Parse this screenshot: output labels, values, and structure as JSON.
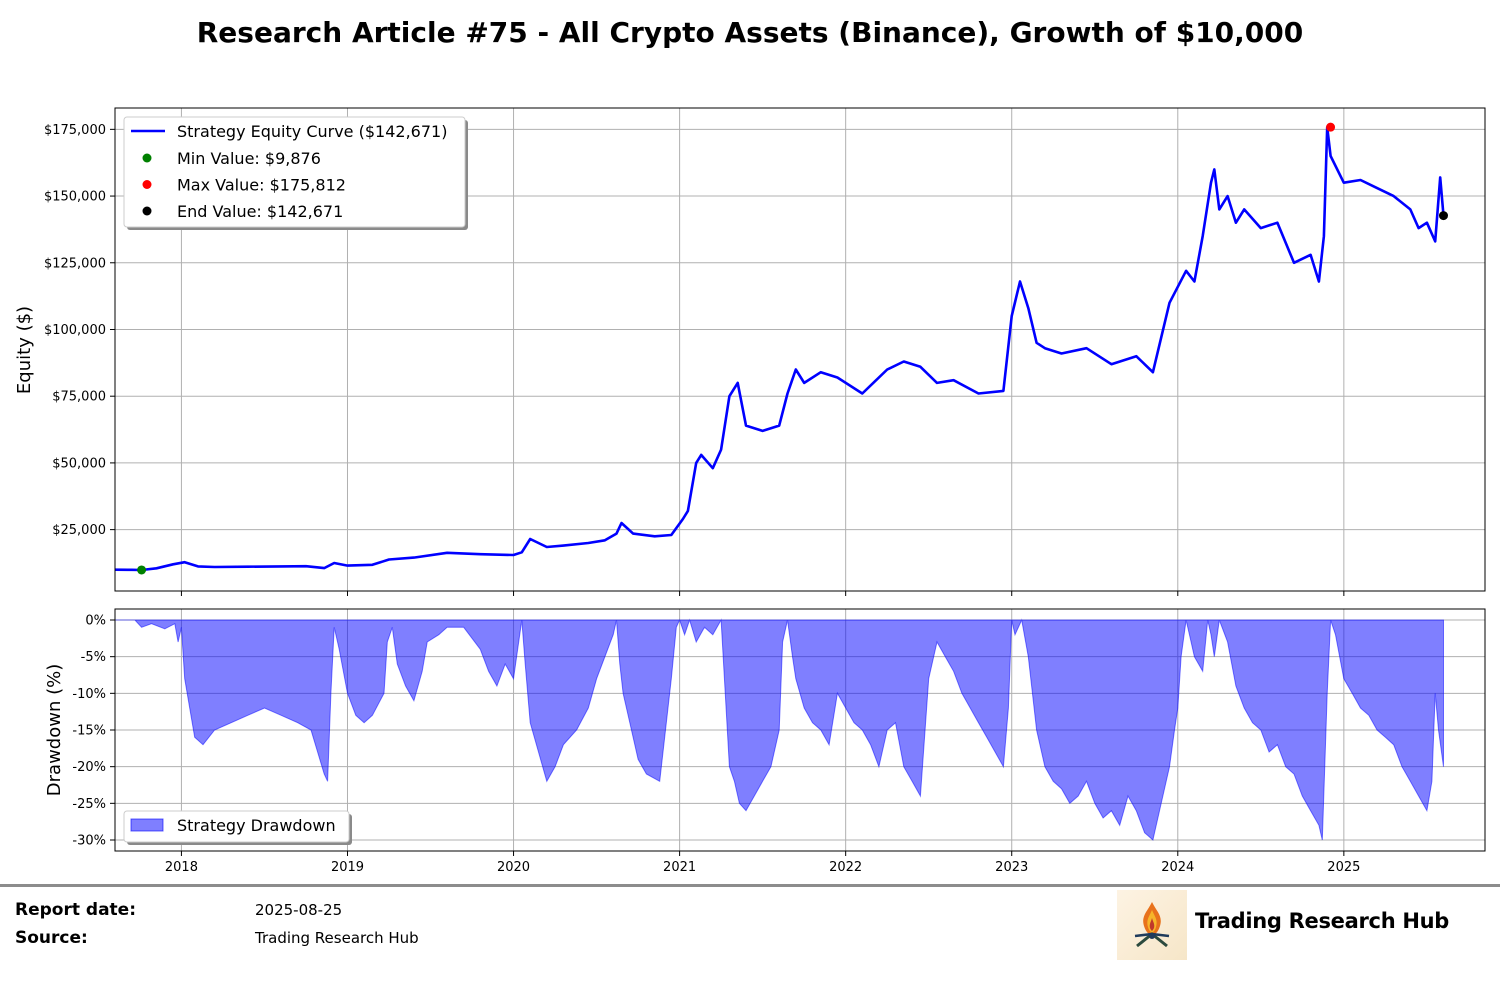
{
  "chart_data": [
    {
      "type": "line",
      "title": "Research Article #75 - All Crypto Assets (Binance), Growth of $10,000",
      "xlabel": "",
      "ylabel": "Equity ($)",
      "xlim": [
        2017.6,
        2025.85
      ],
      "ylim": [
        2000,
        183000
      ],
      "yticks": [
        25000,
        50000,
        75000,
        100000,
        125000,
        150000,
        175000
      ],
      "ytick_labels": [
        "$25,000",
        "$50,000",
        "$75,000",
        "$100,000",
        "$125,000",
        "$150,000",
        "$175,000"
      ],
      "xticks": [
        2018,
        2019,
        2020,
        2021,
        2022,
        2023,
        2024,
        2025
      ],
      "xtick_labels": [
        "2018",
        "2019",
        "2020",
        "2021",
        "2022",
        "2023",
        "2024",
        "2025"
      ],
      "grid": true,
      "legend_position": "top-left",
      "series": [
        {
          "name": "Strategy Equity Curve ($142,671)",
          "color": "#0000ff",
          "x": [
            2017.6,
            2017.7,
            2017.76,
            2017.85,
            2017.95,
            2018.02,
            2018.1,
            2018.2,
            2018.4,
            2018.6,
            2018.75,
            2018.86,
            2018.92,
            2019.0,
            2019.15,
            2019.25,
            2019.4,
            2019.6,
            2019.8,
            2020.0,
            2020.05,
            2020.1,
            2020.2,
            2020.3,
            2020.45,
            2020.55,
            2020.62,
            2020.65,
            2020.72,
            2020.85,
            2020.95,
            2021.02,
            2021.05,
            2021.1,
            2021.13,
            2021.2,
            2021.25,
            2021.3,
            2021.35,
            2021.4,
            2021.5,
            2021.6,
            2021.65,
            2021.7,
            2021.75,
            2021.85,
            2021.95,
            2022.1,
            2022.25,
            2022.35,
            2022.45,
            2022.55,
            2022.65,
            2022.8,
            2022.95,
            2023.0,
            2023.05,
            2023.1,
            2023.15,
            2023.2,
            2023.3,
            2023.45,
            2023.6,
            2023.75,
            2023.85,
            2023.95,
            2024.05,
            2024.1,
            2024.15,
            2024.2,
            2024.22,
            2024.25,
            2024.3,
            2024.35,
            2024.4,
            2024.5,
            2024.6,
            2024.7,
            2024.8,
            2024.85,
            2024.88,
            2024.9,
            2024.92,
            2025.0,
            2025.1,
            2025.2,
            2025.3,
            2025.4,
            2025.45,
            2025.5,
            2025.55,
            2025.58,
            2025.6
          ],
          "y": [
            10000,
            9950,
            9876,
            10500,
            12000,
            12800,
            11200,
            11000,
            11100,
            11200,
            11300,
            10600,
            12500,
            11500,
            11800,
            13800,
            14500,
            16300,
            15800,
            15500,
            16500,
            21500,
            18500,
            19000,
            20000,
            21000,
            23500,
            27500,
            23500,
            22500,
            23000,
            29000,
            32000,
            50000,
            53000,
            48000,
            55000,
            75000,
            80000,
            64000,
            62000,
            64000,
            76000,
            85000,
            80000,
            84000,
            82000,
            76000,
            85000,
            88000,
            86000,
            80000,
            81000,
            76000,
            77000,
            105000,
            118000,
            108000,
            95000,
            93000,
            91000,
            93000,
            87000,
            90000,
            84000,
            110000,
            122000,
            118000,
            135000,
            155000,
            160000,
            145000,
            150000,
            140000,
            145000,
            138000,
            140000,
            125000,
            128000,
            118000,
            135000,
            175812,
            165000,
            155000,
            156000,
            153000,
            150000,
            145000,
            138000,
            140000,
            133000,
            157000,
            142671
          ]
        }
      ],
      "markers": [
        {
          "label": "Min Value: $9,876",
          "x": 2017.76,
          "y": 9876,
          "color": "#008000"
        },
        {
          "label": "Max Value: $175,812",
          "x": 2024.92,
          "y": 175812,
          "color": "#ff0000"
        },
        {
          "label": "End Value: $142,671",
          "x": 2025.6,
          "y": 142671,
          "color": "#000000"
        }
      ]
    },
    {
      "type": "area",
      "title": "",
      "xlabel": "",
      "ylabel": "Drawdown (%)",
      "xlim": [
        2017.6,
        2025.85
      ],
      "ylim": [
        -31.5,
        1.5
      ],
      "yticks": [
        0,
        -5,
        -10,
        -15,
        -20,
        -25,
        -30
      ],
      "ytick_labels": [
        "0%",
        "-5%",
        "-10%",
        "-15%",
        "-20%",
        "-25%",
        "-30%"
      ],
      "xticks": [
        2018,
        2019,
        2020,
        2021,
        2022,
        2023,
        2024,
        2025
      ],
      "xtick_labels": [
        "2018",
        "2019",
        "2020",
        "2021",
        "2022",
        "2023",
        "2024",
        "2025"
      ],
      "grid": true,
      "legend_position": "bottom-left",
      "series": [
        {
          "name": "Strategy Drawdown",
          "color": "#0000ff",
          "x": [
            2017.6,
            2017.72,
            2017.76,
            2017.82,
            2017.9,
            2017.96,
            2017.98,
            2018.0,
            2018.02,
            2018.05,
            2018.08,
            2018.13,
            2018.2,
            2018.3,
            2018.4,
            2018.5,
            2018.6,
            2018.7,
            2018.78,
            2018.82,
            2018.86,
            2018.88,
            2018.9,
            2018.92,
            2018.95,
            2019.0,
            2019.05,
            2019.1,
            2019.15,
            2019.22,
            2019.24,
            2019.27,
            2019.3,
            2019.35,
            2019.4,
            2019.45,
            2019.48,
            2019.55,
            2019.6,
            2019.7,
            2019.8,
            2019.85,
            2019.9,
            2019.95,
            2020.0,
            2020.05,
            2020.07,
            2020.1,
            2020.15,
            2020.2,
            2020.25,
            2020.3,
            2020.38,
            2020.45,
            2020.5,
            2020.55,
            2020.6,
            2020.62,
            2020.64,
            2020.66,
            2020.7,
            2020.75,
            2020.8,
            2020.88,
            2020.95,
            2020.98,
            2021.0,
            2021.03,
            2021.06,
            2021.1,
            2021.15,
            2021.2,
            2021.25,
            2021.3,
            2021.33,
            2021.36,
            2021.4,
            2021.45,
            2021.5,
            2021.55,
            2021.6,
            2021.62,
            2021.65,
            2021.68,
            2021.7,
            2021.75,
            2021.8,
            2021.85,
            2021.9,
            2021.95,
            2022.0,
            2022.05,
            2022.1,
            2022.15,
            2022.2,
            2022.25,
            2022.3,
            2022.35,
            2022.4,
            2022.45,
            2022.5,
            2022.55,
            2022.6,
            2022.65,
            2022.7,
            2022.75,
            2022.8,
            2022.85,
            2022.9,
            2022.95,
            2022.98,
            2023.0,
            2023.02,
            2023.06,
            2023.1,
            2023.15,
            2023.2,
            2023.25,
            2023.3,
            2023.35,
            2023.4,
            2023.45,
            2023.5,
            2023.55,
            2023.6,
            2023.65,
            2023.7,
            2023.75,
            2023.8,
            2023.85,
            2023.9,
            2023.95,
            2023.98,
            2024.0,
            2024.02,
            2024.05,
            2024.08,
            2024.1,
            2024.15,
            2024.18,
            2024.2,
            2024.22,
            2024.25,
            2024.3,
            2024.35,
            2024.4,
            2024.45,
            2024.5,
            2024.55,
            2024.6,
            2024.65,
            2024.7,
            2024.75,
            2024.8,
            2024.85,
            2024.87,
            2024.9,
            2024.92,
            2024.95,
            2025.0,
            2025.05,
            2025.1,
            2025.15,
            2025.2,
            2025.25,
            2025.3,
            2025.35,
            2025.4,
            2025.45,
            2025.5,
            2025.53,
            2025.55,
            2025.57,
            2025.6
          ],
          "y": [
            0,
            0,
            -1,
            -0.5,
            -1.2,
            -0.5,
            -3,
            -1,
            -8,
            -12,
            -16,
            -17,
            -15,
            -14,
            -13,
            -12,
            -13,
            -14,
            -15,
            -18,
            -21,
            -22,
            -10,
            -1,
            -4,
            -10,
            -13,
            -14,
            -13,
            -10,
            -3,
            -1,
            -6,
            -9,
            -11,
            -7,
            -3,
            -2,
            -1,
            -1,
            -4,
            -7,
            -9,
            -6,
            -8,
            0,
            -6,
            -14,
            -18,
            -22,
            -20,
            -17,
            -15,
            -12,
            -8,
            -5,
            -2,
            0,
            -6,
            -10,
            -14,
            -19,
            -21,
            -22,
            -8,
            -1,
            0,
            -2,
            0,
            -3,
            -1,
            -2,
            0,
            -20,
            -22,
            -25,
            -26,
            -24,
            -22,
            -20,
            -15,
            -3,
            0,
            -5,
            -8,
            -12,
            -14,
            -15,
            -17,
            -10,
            -12,
            -14,
            -15,
            -17,
            -20,
            -15,
            -14,
            -20,
            -22,
            -24,
            -8,
            -3,
            -5,
            -7,
            -10,
            -12,
            -14,
            -16,
            -18,
            -20,
            -12,
            0,
            -2,
            0,
            -5,
            -15,
            -20,
            -22,
            -23,
            -25,
            -24,
            -22,
            -25,
            -27,
            -26,
            -28,
            -24,
            -26,
            -29,
            -30,
            -25,
            -20,
            -15,
            -12,
            -5,
            0,
            -3,
            -5,
            -7,
            0,
            -2,
            -5,
            0,
            -3,
            -9,
            -12,
            -14,
            -15,
            -18,
            -17,
            -20,
            -21,
            -24,
            -26,
            -28,
            -30,
            -10,
            0,
            -2,
            -8,
            -10,
            -12,
            -13,
            -15,
            -16,
            -17,
            -20,
            -22,
            -24,
            -26,
            -22,
            -10,
            -15,
            -20
          ]
        }
      ]
    }
  ],
  "footer": {
    "report_date_label": "Report date:",
    "report_date_value": "2025-08-25",
    "source_label": "Source:",
    "source_value": "Trading Research Hub",
    "brand_name": "Trading Research Hub"
  }
}
